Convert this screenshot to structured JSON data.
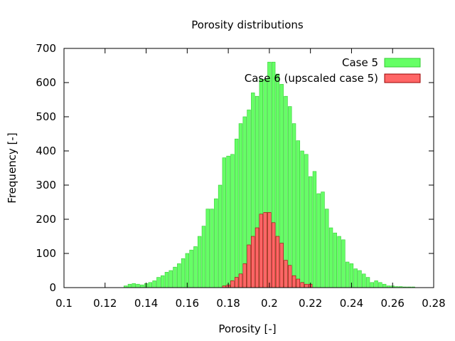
{
  "chart_data": {
    "type": "bar",
    "title": "Porosity distributions",
    "xlabel": "Porosity [-]",
    "ylabel": "Frequency [-]",
    "xlim": [
      0.1,
      0.28
    ],
    "ylim": [
      0,
      700
    ],
    "xticks": [
      "0.1",
      "0.12",
      "0.14",
      "0.16",
      "0.18",
      "0.2",
      "0.22",
      "0.24",
      "0.26",
      "0.28"
    ],
    "yticks": [
      "0",
      "100",
      "200",
      "300",
      "400",
      "500",
      "600",
      "700"
    ],
    "bin_width": 0.002,
    "grid": false,
    "legend_position": "top-right",
    "series": [
      {
        "name": "Case 5",
        "color": "#66ff66",
        "edge_color": "#33cc33",
        "x": [
          0.13,
          0.132,
          0.134,
          0.136,
          0.138,
          0.14,
          0.142,
          0.144,
          0.146,
          0.148,
          0.15,
          0.152,
          0.154,
          0.156,
          0.158,
          0.16,
          0.162,
          0.164,
          0.166,
          0.168,
          0.17,
          0.172,
          0.174,
          0.176,
          0.178,
          0.18,
          0.182,
          0.184,
          0.186,
          0.188,
          0.19,
          0.192,
          0.194,
          0.196,
          0.198,
          0.2,
          0.202,
          0.204,
          0.206,
          0.208,
          0.21,
          0.212,
          0.214,
          0.216,
          0.218,
          0.22,
          0.222,
          0.224,
          0.226,
          0.228,
          0.23,
          0.232,
          0.234,
          0.236,
          0.238,
          0.24,
          0.242,
          0.244,
          0.246,
          0.248,
          0.25,
          0.252,
          0.254,
          0.256,
          0.258,
          0.26,
          0.262,
          0.264,
          0.266,
          0.268,
          0.27
        ],
        "values": [
          5,
          10,
          12,
          10,
          8,
          12,
          15,
          20,
          30,
          35,
          45,
          50,
          60,
          70,
          85,
          100,
          110,
          120,
          150,
          180,
          230,
          230,
          260,
          300,
          380,
          385,
          390,
          435,
          480,
          500,
          520,
          570,
          560,
          610,
          610,
          660,
          660,
          625,
          595,
          560,
          530,
          480,
          430,
          400,
          390,
          325,
          340,
          275,
          280,
          230,
          175,
          160,
          150,
          140,
          75,
          70,
          55,
          50,
          40,
          30,
          15,
          20,
          15,
          10,
          5,
          5,
          3,
          3,
          2,
          2,
          2
        ]
      },
      {
        "name": "Case 6 (upscaled case 5)",
        "color": "#ff6666",
        "edge_color": "#990000",
        "x": [
          0.178,
          0.18,
          0.182,
          0.184,
          0.186,
          0.188,
          0.19,
          0.192,
          0.194,
          0.196,
          0.198,
          0.2,
          0.202,
          0.204,
          0.206,
          0.208,
          0.21,
          0.212,
          0.214,
          0.216,
          0.218,
          0.22
        ],
        "values": [
          5,
          8,
          20,
          30,
          40,
          70,
          125,
          150,
          175,
          215,
          220,
          220,
          190,
          150,
          130,
          80,
          65,
          35,
          25,
          15,
          10,
          10
        ]
      }
    ]
  }
}
